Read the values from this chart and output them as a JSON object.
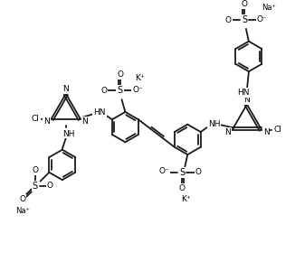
{
  "bg_color": "#ffffff",
  "bond_color": "#1a1a1a",
  "lw": 1.3,
  "fs": 6.5,
  "figsize": [
    3.26,
    3.0
  ],
  "dpi": 100,
  "xlim": [
    0,
    326
  ],
  "ylim": [
    0,
    300
  ]
}
